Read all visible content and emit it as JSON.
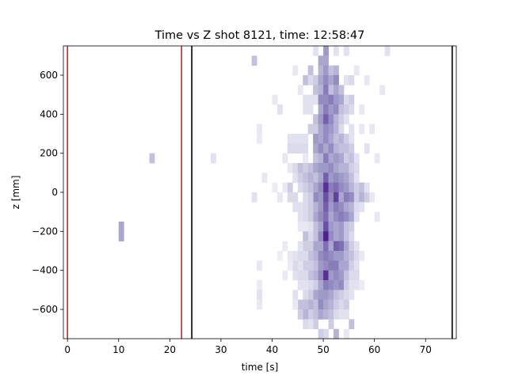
{
  "chart_data": {
    "type": "heatmap",
    "title": "Time vs Z shot 8121, time: 12:58:47",
    "xlabel": "time [s]",
    "ylabel": "z [mm]",
    "xlim": [
      -0.8,
      76
    ],
    "ylim": [
      -750,
      750
    ],
    "x_ticks": [
      0,
      10,
      20,
      30,
      40,
      50,
      60,
      70
    ],
    "y_ticks": [
      -600,
      -400,
      -200,
      0,
      200,
      400,
      600
    ],
    "colormap": "Purples",
    "bin_width_s": 1,
    "bin_height_mm": 50,
    "vlines": [
      {
        "x": 0,
        "color": "#d62728"
      },
      {
        "x": 22.3,
        "color": "#d62728"
      },
      {
        "x": 24.3,
        "color": "#000000"
      },
      {
        "x": 75.2,
        "color": "#000000"
      }
    ],
    "cells": [
      [
        10,
        -225,
        0.45
      ],
      [
        10,
        -175,
        0.45
      ],
      [
        16,
        175,
        0.35
      ],
      [
        28,
        175,
        0.2
      ],
      [
        36,
        675,
        0.35
      ],
      [
        36,
        -25,
        0.2
      ],
      [
        38,
        75,
        0.15
      ],
      [
        37,
        325,
        0.15
      ],
      [
        37,
        275,
        0.12
      ],
      [
        37,
        -375,
        0.15
      ],
      [
        37,
        -475,
        0.12
      ],
      [
        37,
        -525,
        0.2
      ],
      [
        37,
        -575,
        0.15
      ],
      [
        40,
        475,
        0.15
      ],
      [
        41,
        425,
        0.2
      ],
      [
        42,
        175,
        0.15
      ],
      [
        43,
        275,
        0.2
      ],
      [
        43,
        225,
        0.25
      ],
      [
        44,
        275,
        0.2
      ],
      [
        44,
        225,
        0.25
      ],
      [
        45,
        275,
        0.2
      ],
      [
        45,
        225,
        0.25
      ],
      [
        46,
        275,
        0.2
      ],
      [
        46,
        225,
        0.25
      ],
      [
        46,
        175,
        0.15
      ],
      [
        43,
        125,
        0.15
      ],
      [
        44,
        125,
        0.25
      ],
      [
        45,
        125,
        0.35
      ],
      [
        46,
        125,
        0.3
      ],
      [
        47,
        125,
        0.35
      ],
      [
        44,
        625,
        0.15
      ],
      [
        45,
        525,
        0.15
      ],
      [
        46,
        575,
        0.35
      ],
      [
        46,
        475,
        0.2
      ],
      [
        46,
        425,
        0.2
      ],
      [
        47,
        625,
        0.35
      ],
      [
        47,
        575,
        0.25
      ],
      [
        47,
        475,
        0.2
      ],
      [
        47,
        425,
        0.2
      ],
      [
        47,
        325,
        0.3
      ],
      [
        48,
        725,
        0.2
      ],
      [
        48,
        575,
        0.3
      ],
      [
        48,
        525,
        0.35
      ],
      [
        48,
        475,
        0.2
      ],
      [
        48,
        375,
        0.35
      ],
      [
        48,
        325,
        0.3
      ],
      [
        49,
        675,
        0.45
      ],
      [
        49,
        625,
        0.4
      ],
      [
        49,
        575,
        0.45
      ],
      [
        49,
        525,
        0.4
      ],
      [
        49,
        475,
        0.55
      ],
      [
        49,
        425,
        0.45
      ],
      [
        49,
        375,
        0.5
      ],
      [
        49,
        325,
        0.45
      ],
      [
        50,
        725,
        0.5
      ],
      [
        50,
        675,
        0.45
      ],
      [
        50,
        625,
        0.5
      ],
      [
        50,
        575,
        0.55
      ],
      [
        50,
        525,
        0.6
      ],
      [
        50,
        475,
        0.55
      ],
      [
        50,
        425,
        0.6
      ],
      [
        50,
        375,
        0.7
      ],
      [
        50,
        325,
        0.55
      ],
      [
        51,
        625,
        0.35
      ],
      [
        51,
        575,
        0.45
      ],
      [
        51,
        525,
        0.35
      ],
      [
        51,
        475,
        0.6
      ],
      [
        51,
        425,
        0.5
      ],
      [
        51,
        375,
        0.55
      ],
      [
        51,
        325,
        0.5
      ],
      [
        52,
        725,
        0.2
      ],
      [
        52,
        625,
        0.4
      ],
      [
        52,
        575,
        0.55
      ],
      [
        52,
        525,
        0.45
      ],
      [
        52,
        475,
        0.5
      ],
      [
        52,
        425,
        0.55
      ],
      [
        52,
        375,
        0.4
      ],
      [
        52,
        325,
        0.4
      ],
      [
        53,
        525,
        0.35
      ],
      [
        53,
        475,
        0.45
      ],
      [
        53,
        425,
        0.35
      ],
      [
        53,
        375,
        0.3
      ],
      [
        53,
        325,
        0.25
      ],
      [
        54,
        725,
        0.2
      ],
      [
        54,
        575,
        0.2
      ],
      [
        54,
        475,
        0.25
      ],
      [
        54,
        425,
        0.3
      ],
      [
        54,
        375,
        0.2
      ],
      [
        55,
        575,
        0.25
      ],
      [
        55,
        475,
        0.3
      ],
      [
        55,
        425,
        0.25
      ],
      [
        55,
        325,
        0.2
      ],
      [
        56,
        625,
        0.15
      ],
      [
        57,
        425,
        0.15
      ],
      [
        57,
        325,
        0.15
      ],
      [
        58,
        575,
        0.15
      ],
      [
        58,
        225,
        0.2
      ],
      [
        59,
        325,
        0.15
      ],
      [
        60,
        175,
        0.15
      ],
      [
        61,
        525,
        0.15
      ],
      [
        62,
        725,
        0.2
      ],
      [
        48,
        275,
        0.5
      ],
      [
        48,
        225,
        0.45
      ],
      [
        48,
        175,
        0.35
      ],
      [
        48,
        125,
        0.45
      ],
      [
        48,
        75,
        0.35
      ],
      [
        48,
        25,
        0.45
      ],
      [
        48,
        -25,
        0.55
      ],
      [
        48,
        -75,
        0.4
      ],
      [
        48,
        -125,
        0.45
      ],
      [
        48,
        -175,
        0.35
      ],
      [
        49,
        275,
        0.45
      ],
      [
        49,
        225,
        0.55
      ],
      [
        49,
        175,
        0.4
      ],
      [
        49,
        125,
        0.5
      ],
      [
        49,
        75,
        0.45
      ],
      [
        49,
        25,
        0.55
      ],
      [
        49,
        -25,
        0.5
      ],
      [
        49,
        -75,
        0.5
      ],
      [
        49,
        -125,
        0.55
      ],
      [
        49,
        -175,
        0.45
      ],
      [
        50,
        275,
        0.55
      ],
      [
        50,
        225,
        0.45
      ],
      [
        50,
        175,
        0.6
      ],
      [
        50,
        125,
        0.5
      ],
      [
        50,
        75,
        0.7
      ],
      [
        50,
        25,
        0.85
      ],
      [
        50,
        -25,
        0.75
      ],
      [
        50,
        -75,
        0.7
      ],
      [
        50,
        -125,
        0.65
      ],
      [
        50,
        -175,
        0.75
      ],
      [
        51,
        275,
        0.45
      ],
      [
        51,
        225,
        0.55
      ],
      [
        51,
        175,
        0.45
      ],
      [
        51,
        125,
        0.55
      ],
      [
        51,
        75,
        0.5
      ],
      [
        51,
        25,
        0.6
      ],
      [
        51,
        -25,
        0.55
      ],
      [
        51,
        -75,
        0.5
      ],
      [
        51,
        -125,
        0.45
      ],
      [
        51,
        -175,
        0.5
      ],
      [
        52,
        275,
        0.35
      ],
      [
        52,
        225,
        0.4
      ],
      [
        52,
        175,
        0.5
      ],
      [
        52,
        125,
        0.45
      ],
      [
        52,
        75,
        0.55
      ],
      [
        52,
        25,
        0.65
      ],
      [
        52,
        -25,
        0.8
      ],
      [
        52,
        -75,
        0.6
      ],
      [
        52,
        -125,
        0.55
      ],
      [
        52,
        -175,
        0.45
      ],
      [
        53,
        275,
        0.4
      ],
      [
        53,
        225,
        0.35
      ],
      [
        53,
        175,
        0.45
      ],
      [
        53,
        125,
        0.4
      ],
      [
        53,
        75,
        0.5
      ],
      [
        53,
        25,
        0.55
      ],
      [
        53,
        -25,
        0.45
      ],
      [
        53,
        -75,
        0.55
      ],
      [
        53,
        -125,
        0.6
      ],
      [
        53,
        -175,
        0.5
      ],
      [
        54,
        275,
        0.3
      ],
      [
        54,
        225,
        0.35
      ],
      [
        54,
        175,
        0.3
      ],
      [
        54,
        125,
        0.4
      ],
      [
        54,
        75,
        0.45
      ],
      [
        54,
        25,
        0.5
      ],
      [
        54,
        -25,
        0.6
      ],
      [
        54,
        -75,
        0.45
      ],
      [
        54,
        -125,
        0.55
      ],
      [
        54,
        -175,
        0.35
      ],
      [
        55,
        275,
        0.2
      ],
      [
        55,
        225,
        0.3
      ],
      [
        55,
        175,
        0.35
      ],
      [
        55,
        125,
        0.3
      ],
      [
        55,
        75,
        0.35
      ],
      [
        55,
        25,
        0.4
      ],
      [
        55,
        -25,
        0.55
      ],
      [
        55,
        -75,
        0.4
      ],
      [
        55,
        -125,
        0.45
      ],
      [
        55,
        -175,
        0.3
      ],
      [
        56,
        175,
        0.2
      ],
      [
        56,
        125,
        0.25
      ],
      [
        56,
        75,
        0.2
      ],
      [
        56,
        25,
        0.3
      ],
      [
        56,
        -25,
        0.3
      ],
      [
        56,
        -75,
        0.25
      ],
      [
        56,
        -125,
        0.2
      ],
      [
        57,
        25,
        0.35
      ],
      [
        57,
        -25,
        0.4
      ],
      [
        57,
        -75,
        0.2
      ],
      [
        58,
        -25,
        0.3
      ],
      [
        58,
        25,
        0.2
      ],
      [
        59,
        -25,
        0.15
      ],
      [
        60,
        -125,
        0.15
      ],
      [
        44,
        75,
        0.2
      ],
      [
        45,
        75,
        0.3
      ],
      [
        45,
        25,
        0.25
      ],
      [
        46,
        75,
        0.35
      ],
      [
        46,
        25,
        0.3
      ],
      [
        46,
        -25,
        0.25
      ],
      [
        47,
        75,
        0.4
      ],
      [
        47,
        25,
        0.35
      ],
      [
        47,
        -25,
        0.3
      ],
      [
        42,
        25,
        0.15
      ],
      [
        43,
        25,
        0.3
      ],
      [
        43,
        -25,
        0.25
      ],
      [
        44,
        -25,
        0.25
      ],
      [
        44,
        -75,
        0.2
      ],
      [
        45,
        -75,
        0.2
      ],
      [
        46,
        -75,
        0.25
      ],
      [
        47,
        -75,
        0.3
      ],
      [
        45,
        -125,
        0.2
      ],
      [
        46,
        -125,
        0.25
      ],
      [
        47,
        -125,
        0.3
      ],
      [
        47,
        -175,
        0.2
      ],
      [
        46,
        -175,
        0.15
      ],
      [
        45,
        -175,
        0.15
      ],
      [
        41,
        -25,
        0.15
      ],
      [
        40,
        25,
        0.12
      ],
      [
        48,
        -225,
        0.35
      ],
      [
        48,
        -275,
        0.45
      ],
      [
        48,
        -325,
        0.4
      ],
      [
        48,
        -375,
        0.35
      ],
      [
        48,
        -425,
        0.4
      ],
      [
        48,
        -475,
        0.3
      ],
      [
        48,
        -525,
        0.45
      ],
      [
        48,
        -575,
        0.35
      ],
      [
        48,
        -625,
        0.35
      ],
      [
        48,
        -675,
        0.3
      ],
      [
        49,
        -225,
        0.55
      ],
      [
        49,
        -275,
        0.45
      ],
      [
        49,
        -325,
        0.55
      ],
      [
        49,
        -375,
        0.5
      ],
      [
        49,
        -425,
        0.55
      ],
      [
        49,
        -475,
        0.45
      ],
      [
        49,
        -525,
        0.5
      ],
      [
        49,
        -575,
        0.55
      ],
      [
        49,
        -625,
        0.45
      ],
      [
        49,
        -725,
        0.3
      ],
      [
        50,
        -225,
        0.9
      ],
      [
        50,
        -275,
        0.65
      ],
      [
        50,
        -325,
        0.6
      ],
      [
        50,
        -375,
        0.55
      ],
      [
        50,
        -425,
        0.85
      ],
      [
        50,
        -475,
        0.6
      ],
      [
        50,
        -525,
        0.5
      ],
      [
        50,
        -575,
        0.45
      ],
      [
        50,
        -625,
        0.4
      ],
      [
        50,
        -725,
        0.25
      ],
      [
        51,
        -225,
        0.55
      ],
      [
        51,
        -275,
        0.45
      ],
      [
        51,
        -325,
        0.55
      ],
      [
        51,
        -375,
        0.6
      ],
      [
        51,
        -425,
        0.5
      ],
      [
        51,
        -475,
        0.55
      ],
      [
        51,
        -525,
        0.45
      ],
      [
        51,
        -575,
        0.4
      ],
      [
        51,
        -625,
        0.35
      ],
      [
        51,
        -675,
        0.3
      ],
      [
        52,
        -225,
        0.45
      ],
      [
        52,
        -275,
        0.7
      ],
      [
        52,
        -325,
        0.5
      ],
      [
        52,
        -375,
        0.6
      ],
      [
        52,
        -425,
        0.55
      ],
      [
        52,
        -475,
        0.5
      ],
      [
        52,
        -525,
        0.35
      ],
      [
        52,
        -575,
        0.3
      ],
      [
        52,
        -625,
        0.25
      ],
      [
        52,
        -725,
        0.4
      ],
      [
        53,
        -225,
        0.5
      ],
      [
        53,
        -275,
        0.65
      ],
      [
        53,
        -325,
        0.5
      ],
      [
        53,
        -375,
        0.45
      ],
      [
        53,
        -425,
        0.5
      ],
      [
        53,
        -475,
        0.55
      ],
      [
        53,
        -525,
        0.3
      ],
      [
        53,
        -575,
        0.25
      ],
      [
        53,
        -625,
        0.2
      ],
      [
        54,
        -225,
        0.35
      ],
      [
        54,
        -275,
        0.45
      ],
      [
        54,
        -325,
        0.4
      ],
      [
        54,
        -375,
        0.45
      ],
      [
        54,
        -425,
        0.35
      ],
      [
        54,
        -475,
        0.3
      ],
      [
        54,
        -525,
        0.25
      ],
      [
        54,
        -575,
        0.3
      ],
      [
        54,
        -625,
        0.2
      ],
      [
        54,
        -725,
        0.15
      ],
      [
        55,
        -225,
        0.25
      ],
      [
        55,
        -275,
        0.3
      ],
      [
        55,
        -325,
        0.35
      ],
      [
        55,
        -375,
        0.3
      ],
      [
        55,
        -425,
        0.25
      ],
      [
        55,
        -475,
        0.2
      ],
      [
        55,
        -525,
        0.2
      ],
      [
        55,
        -675,
        0.35
      ],
      [
        56,
        -275,
        0.2
      ],
      [
        56,
        -325,
        0.25
      ],
      [
        56,
        -375,
        0.2
      ],
      [
        56,
        -425,
        0.25
      ],
      [
        56,
        -475,
        0.2
      ],
      [
        57,
        -325,
        0.15
      ],
      [
        57,
        -475,
        0.12
      ],
      [
        47,
        -225,
        0.25
      ],
      [
        47,
        -275,
        0.3
      ],
      [
        47,
        -325,
        0.35
      ],
      [
        47,
        -375,
        0.3
      ],
      [
        47,
        -425,
        0.35
      ],
      [
        47,
        -475,
        0.25
      ],
      [
        47,
        -525,
        0.3
      ],
      [
        47,
        -575,
        0.4
      ],
      [
        47,
        -625,
        0.3
      ],
      [
        47,
        -675,
        0.2
      ],
      [
        46,
        -225,
        0.35
      ],
      [
        46,
        -275,
        0.3
      ],
      [
        46,
        -325,
        0.25
      ],
      [
        46,
        -375,
        0.3
      ],
      [
        46,
        -425,
        0.25
      ],
      [
        46,
        -475,
        0.2
      ],
      [
        46,
        -525,
        0.25
      ],
      [
        46,
        -575,
        0.35
      ],
      [
        46,
        -625,
        0.4
      ],
      [
        46,
        -675,
        0.25
      ],
      [
        45,
        -275,
        0.2
      ],
      [
        45,
        -325,
        0.25
      ],
      [
        45,
        -375,
        0.2
      ],
      [
        45,
        -425,
        0.25
      ],
      [
        45,
        -475,
        0.2
      ],
      [
        45,
        -575,
        0.35
      ],
      [
        45,
        -625,
        0.3
      ],
      [
        44,
        -325,
        0.2
      ],
      [
        44,
        -375,
        0.25
      ],
      [
        44,
        -425,
        0.2
      ],
      [
        44,
        -525,
        0.2
      ],
      [
        44,
        -575,
        0.15
      ],
      [
        43,
        -325,
        0.15
      ],
      [
        43,
        -375,
        0.12
      ],
      [
        42,
        -275,
        0.12
      ],
      [
        41,
        -325,
        0.1
      ],
      [
        42,
        -425,
        0.12
      ]
    ]
  }
}
